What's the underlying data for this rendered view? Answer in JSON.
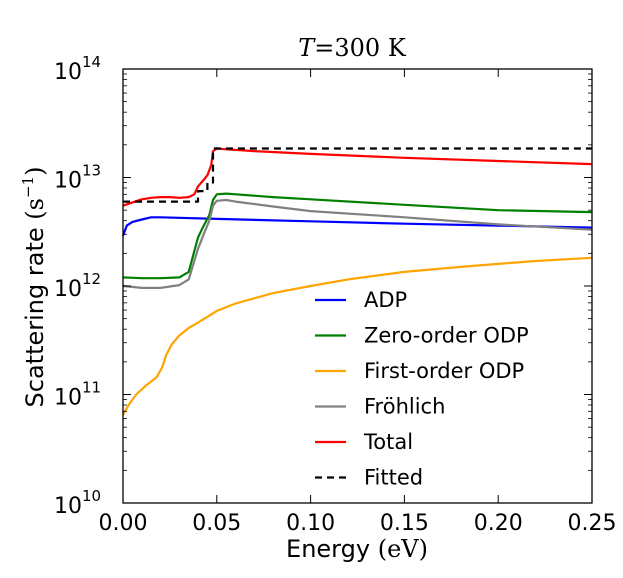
{
  "chart_data": {
    "type": "line",
    "title_main": "T",
    "title_rest": "=300 K",
    "xlabel": "Energy",
    "xlabel_unit": "(eV)",
    "ylabel": "Scattering rate",
    "ylabel_unit_base": "(s",
    "ylabel_unit_exp": "−1",
    "ylabel_unit_close": ")",
    "xlim": [
      0.0,
      0.25
    ],
    "ylim": [
      10000000000.0,
      100000000000000.0
    ],
    "yscale": "log",
    "grid": false,
    "legend_position": "lower-right",
    "x_ticks": [
      "0.00",
      "0.05",
      "0.10",
      "0.15",
      "0.20",
      "0.25"
    ],
    "y_ticks": [
      {
        "base": "10",
        "exp": "10"
      },
      {
        "base": "10",
        "exp": "11"
      },
      {
        "base": "10",
        "exp": "12"
      },
      {
        "base": "10",
        "exp": "13"
      },
      {
        "base": "10",
        "exp": "14"
      }
    ],
    "series": [
      {
        "name": "ADP",
        "color": "#0000ff",
        "style": "solid",
        "x": [
          0.0,
          0.002,
          0.005,
          0.01,
          0.015,
          0.02,
          0.05,
          0.1,
          0.15,
          0.2,
          0.25
        ],
        "y": [
          2900000000000.0,
          3600000000000.0,
          3900000000000.0,
          4100000000000.0,
          4300000000000.0,
          4300000000000.0,
          4150000000000.0,
          3950000000000.0,
          3750000000000.0,
          3600000000000.0,
          3450000000000.0
        ]
      },
      {
        "name": "Zero-order ODP",
        "color": "#008000",
        "style": "solid",
        "x": [
          0.0,
          0.01,
          0.02,
          0.03,
          0.035,
          0.04,
          0.043,
          0.046,
          0.048,
          0.05,
          0.055,
          0.06,
          0.08,
          0.1,
          0.15,
          0.2,
          0.25
        ],
        "y": [
          1200000000000.0,
          1180000000000.0,
          1180000000000.0,
          1200000000000.0,
          1350000000000.0,
          2800000000000.0,
          3600000000000.0,
          4500000000000.0,
          6200000000000.0,
          7000000000000.0,
          7100000000000.0,
          7000000000000.0,
          6600000000000.0,
          6300000000000.0,
          5600000000000.0,
          5000000000000.0,
          4800000000000.0
        ]
      },
      {
        "name": "First-order ODP",
        "color": "#ffa500",
        "style": "solid",
        "x": [
          0.0,
          0.003,
          0.007,
          0.012,
          0.018,
          0.021,
          0.023,
          0.026,
          0.03,
          0.035,
          0.04,
          0.045,
          0.05,
          0.06,
          0.08,
          0.1,
          0.12,
          0.15,
          0.18,
          0.2,
          0.22,
          0.25
        ],
        "y": [
          65000000000.0,
          80000000000.0,
          100000000000.0,
          120000000000.0,
          145000000000.0,
          180000000000.0,
          230000000000.0,
          290000000000.0,
          350000000000.0,
          410000000000.0,
          460000000000.0,
          520000000000.0,
          590000000000.0,
          690000000000.0,
          860000000000.0,
          1000000000000.0,
          1150000000000.0,
          1350000000000.0,
          1500000000000.0,
          1600000000000.0,
          1700000000000.0,
          1820000000000.0
        ]
      },
      {
        "name": "Fröhlich",
        "color": "#808080",
        "style": "solid",
        "x": [
          0.0,
          0.01,
          0.02,
          0.03,
          0.035,
          0.04,
          0.043,
          0.046,
          0.048,
          0.05,
          0.055,
          0.06,
          0.08,
          0.1,
          0.15,
          0.2,
          0.25
        ],
        "y": [
          1000000000000.0,
          960000000000.0,
          960000000000.0,
          1020000000000.0,
          1150000000000.0,
          2200000000000.0,
          3000000000000.0,
          4000000000000.0,
          5500000000000.0,
          6100000000000.0,
          6200000000000.0,
          6000000000000.0,
          5400000000000.0,
          4900000000000.0,
          4300000000000.0,
          3700000000000.0,
          3300000000000.0
        ]
      },
      {
        "name": "Total",
        "color": "#ff0000",
        "style": "solid",
        "x": [
          0.0,
          0.005,
          0.01,
          0.015,
          0.02,
          0.025,
          0.03,
          0.035,
          0.038,
          0.04,
          0.043,
          0.045,
          0.047,
          0.048,
          0.05,
          0.055,
          0.07,
          0.1,
          0.15,
          0.2,
          0.25
        ],
        "y": [
          5500000000000.0,
          5900000000000.0,
          6300000000000.0,
          6500000000000.0,
          6600000000000.0,
          6600000000000.0,
          6500000000000.0,
          6600000000000.0,
          7000000000000.0,
          8300000000000.0,
          9500000000000.0,
          10500000000000.0,
          13000000000000.0,
          17500000000000.0,
          18500000000000.0,
          18200000000000.0,
          17500000000000.0,
          16500000000000.0,
          15200000000000.0,
          14200000000000.0,
          13300000000000.0
        ]
      },
      {
        "name": "Fitted",
        "color": "#000000",
        "style": "dashed",
        "x": [
          0.0,
          0.04,
          0.04,
          0.045,
          0.045,
          0.048,
          0.048,
          0.25
        ],
        "y": [
          6000000000000.0,
          6000000000000.0,
          7500000000000.0,
          7500000000000.0,
          9000000000000.0,
          9000000000000.0,
          18500000000000.0,
          18500000000000.0
        ]
      }
    ]
  }
}
